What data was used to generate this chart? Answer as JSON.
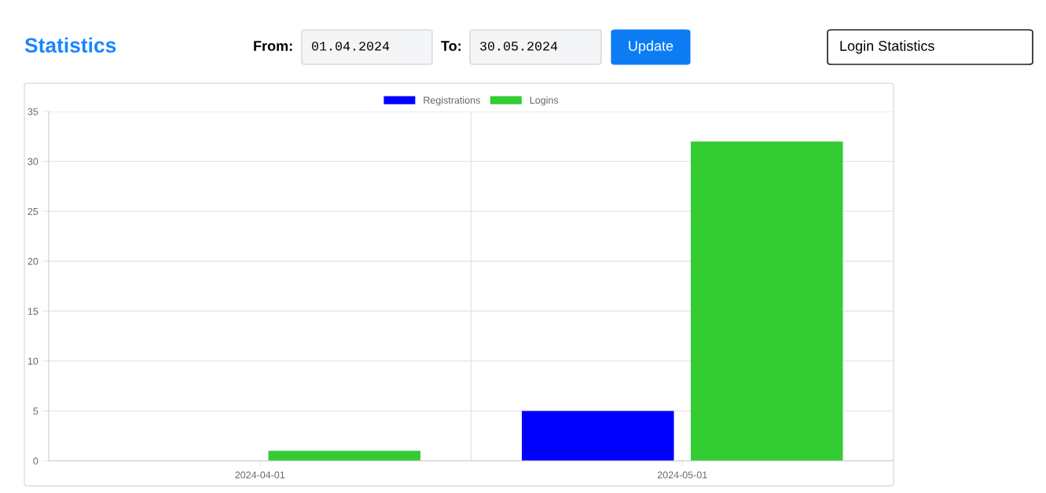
{
  "chart_data": {
    "type": "bar",
    "title": "Statistics",
    "annotations": [
      "From:",
      "01.04.2024",
      "To:",
      "30.05.2024",
      "Update",
      "Login Statistics"
    ],
    "categories": [
      "2024-04-01",
      "2024-05-01"
    ],
    "series": [
      {
        "name": "Registrations",
        "color": "#0000ff",
        "values": [
          0,
          5
        ]
      },
      {
        "name": "Logins",
        "color": "#33cc33",
        "values": [
          1,
          32
        ]
      }
    ],
    "ylim": [
      0,
      35
    ],
    "yticks": [
      0,
      5,
      10,
      15,
      20,
      25,
      30,
      35
    ],
    "grid": true,
    "legend": "top"
  }
}
